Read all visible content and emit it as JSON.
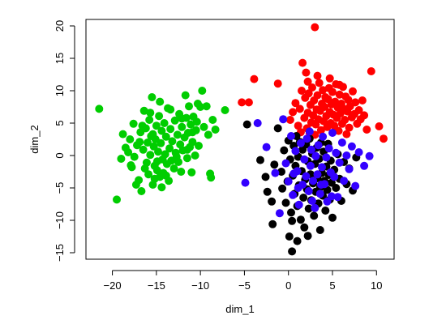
{
  "chart_data": {
    "type": "scatter",
    "title": "",
    "xlabel": "dim_1",
    "ylabel": "dim_2",
    "xlim": [
      -23,
      12
    ],
    "ylim": [
      -16,
      21
    ],
    "xticks": [
      -20,
      -15,
      -10,
      -5,
      0,
      5,
      10
    ],
    "yticks": [
      -15,
      -10,
      -5,
      0,
      5,
      10,
      15,
      20
    ],
    "xtick_labels": [
      "−20",
      "−15",
      "−10",
      "−5",
      "0",
      "5",
      "10"
    ],
    "ytick_labels": [
      "−15",
      "−10",
      "−5",
      "0",
      "5",
      "10",
      "15",
      "20"
    ],
    "grid": false,
    "legend": "none",
    "series": [
      {
        "color": "#00cd00",
        "points": [
          [
            -21.5,
            7.2
          ],
          [
            -19.5,
            -6.8
          ],
          [
            -19,
            -0.5
          ],
          [
            -18.8,
            3.3
          ],
          [
            -18.5,
            1.2
          ],
          [
            -18.2,
            0.5
          ],
          [
            -18,
            2.5
          ],
          [
            -17.8,
            -1.8
          ],
          [
            -17.6,
            4.9
          ],
          [
            -17.5,
            -0.2
          ],
          [
            -17.2,
            1.6
          ],
          [
            -17,
            -3.8
          ],
          [
            -16.8,
            3.6
          ],
          [
            -16.7,
            -5.5
          ],
          [
            -16.5,
            0.9
          ],
          [
            -16.4,
            6.9
          ],
          [
            -16.2,
            4.2
          ],
          [
            -16.1,
            -1.1
          ],
          [
            -16,
            2.0
          ],
          [
            -15.9,
            -2.9
          ],
          [
            -15.8,
            5.5
          ],
          [
            -15.7,
            0.1
          ],
          [
            -15.6,
            3.0
          ],
          [
            -15.5,
            9.0
          ],
          [
            -15.4,
            -4.5
          ],
          [
            -15.3,
            1.4
          ],
          [
            -15.2,
            -1.6
          ],
          [
            -15.1,
            2.5
          ],
          [
            -15,
            4.6
          ],
          [
            -14.9,
            -2.3
          ],
          [
            -14.8,
            0.6
          ],
          [
            -14.7,
            6.1
          ],
          [
            -14.6,
            -3.3
          ],
          [
            -14.5,
            1.9
          ],
          [
            -14.4,
            3.8
          ],
          [
            -14.3,
            -0.6
          ],
          [
            -14.2,
            -2.7
          ],
          [
            -14.1,
            5.0
          ],
          [
            -14,
            0.2
          ],
          [
            -13.9,
            2.9
          ],
          [
            -13.8,
            -1.3
          ],
          [
            -13.7,
            7.3
          ],
          [
            -13.6,
            -3.9
          ],
          [
            -13.5,
            1.1
          ],
          [
            -13.4,
            4.1
          ],
          [
            -13.3,
            -0.8
          ],
          [
            -13.2,
            2.2
          ],
          [
            -13,
            -2.0
          ],
          [
            -12.9,
            5.4
          ],
          [
            -12.8,
            0.4
          ],
          [
            -12.6,
            3.2
          ],
          [
            -12.5,
            -1.0
          ],
          [
            -12.4,
            6.4
          ],
          [
            -12.3,
            1.7
          ],
          [
            -12.2,
            -2.5
          ],
          [
            -12.1,
            4.4
          ],
          [
            -12,
            0.8
          ],
          [
            -11.8,
            2.8
          ],
          [
            -11.7,
            9.3
          ],
          [
            -11.6,
            5.8
          ],
          [
            -11.5,
            -0.4
          ],
          [
            -11.4,
            3.5
          ],
          [
            -11.3,
            7.6
          ],
          [
            -11.2,
            1.3
          ],
          [
            -11.1,
            4.8
          ],
          [
            -11,
            -2.6
          ],
          [
            -10.9,
            2.1
          ],
          [
            -10.8,
            6.0
          ],
          [
            -10.6,
            0.0
          ],
          [
            -10.5,
            3.9
          ],
          [
            -10.4,
            5.2
          ],
          [
            -10.2,
            1.5
          ],
          [
            -10,
            7.5
          ],
          [
            -9.8,
            10.0
          ],
          [
            -9.6,
            4.4
          ],
          [
            -9.3,
            7.6
          ],
          [
            -9.1,
            3.2
          ],
          [
            -8.9,
            -2.8
          ],
          [
            -8.8,
            -3.4
          ],
          [
            -8.6,
            5.5
          ],
          [
            -8.3,
            4.0
          ],
          [
            -7.2,
            7.0
          ],
          [
            -17.3,
            -4.5
          ],
          [
            -16.9,
            2.1
          ],
          [
            -16.3,
            -2.0
          ],
          [
            -15.7,
            6.6
          ],
          [
            -15.4,
            3.3
          ],
          [
            -14.9,
            -0.9
          ],
          [
            -14.4,
            -4.9
          ],
          [
            -13.9,
            -3.1
          ],
          [
            -13.4,
            7.1
          ],
          [
            -12.7,
            -0.2
          ],
          [
            -12.1,
            5.7
          ],
          [
            -11.5,
            0.9
          ],
          [
            -10.9,
            3.6
          ],
          [
            -10.3,
            8.0
          ],
          [
            -17.9,
            -1.5
          ],
          [
            -16.6,
            4.6
          ],
          [
            -15.2,
            -3.6
          ],
          [
            -14.6,
            8.3
          ]
        ]
      },
      {
        "color": "#ff0000",
        "points": [
          [
            -5.3,
            8.2
          ],
          [
            -4.5,
            8.2
          ],
          [
            -3.9,
            11.8
          ],
          [
            -1.2,
            11.1
          ],
          [
            0.2,
            5.5
          ],
          [
            0.5,
            6.7
          ],
          [
            0.8,
            8.1
          ],
          [
            1.1,
            4.6
          ],
          [
            1.3,
            7.2
          ],
          [
            1.5,
            10.0
          ],
          [
            1.6,
            14.3
          ],
          [
            1.8,
            5.8
          ],
          [
            1.9,
            8.9
          ],
          [
            2.0,
            12.8
          ],
          [
            2.1,
            4.2
          ],
          [
            2.2,
            6.6
          ],
          [
            2.3,
            9.6
          ],
          [
            2.4,
            3.5
          ],
          [
            2.5,
            7.8
          ],
          [
            2.6,
            5.1
          ],
          [
            2.7,
            10.5
          ],
          [
            2.8,
            6.2
          ],
          [
            2.9,
            8.5
          ],
          [
            3.0,
            19.8
          ],
          [
            3.1,
            4.8
          ],
          [
            3.2,
            7.1
          ],
          [
            3.3,
            9.3
          ],
          [
            3.4,
            5.6
          ],
          [
            3.5,
            11.2
          ],
          [
            3.6,
            6.9
          ],
          [
            3.7,
            3.9
          ],
          [
            3.8,
            8.0
          ],
          [
            3.9,
            10.1
          ],
          [
            4.0,
            5.3
          ],
          [
            4.1,
            7.5
          ],
          [
            4.2,
            9.0
          ],
          [
            4.3,
            6.1
          ],
          [
            4.4,
            4.4
          ],
          [
            4.5,
            8.7
          ],
          [
            4.6,
            10.4
          ],
          [
            4.7,
            6.7
          ],
          [
            4.8,
            5.0
          ],
          [
            4.9,
            7.9
          ],
          [
            5.0,
            9.8
          ],
          [
            5.1,
            6.3
          ],
          [
            5.2,
            4.6
          ],
          [
            5.3,
            8.3
          ],
          [
            5.4,
            11.0
          ],
          [
            5.5,
            5.8
          ],
          [
            5.6,
            7.4
          ],
          [
            5.7,
            3.8
          ],
          [
            5.8,
            9.4
          ],
          [
            5.9,
            6.5
          ],
          [
            6.0,
            8.0
          ],
          [
            6.1,
            4.9
          ],
          [
            6.2,
            10.6
          ],
          [
            6.3,
            7.2
          ],
          [
            6.4,
            5.5
          ],
          [
            6.5,
            9.1
          ],
          [
            6.6,
            3.3
          ],
          [
            6.7,
            6.8
          ],
          [
            6.8,
            8.6
          ],
          [
            6.9,
            4.3
          ],
          [
            7.0,
            7.6
          ],
          [
            7.2,
            5.9
          ],
          [
            7.3,
            9.9
          ],
          [
            7.5,
            6.4
          ],
          [
            7.6,
            8.2
          ],
          [
            7.8,
            4.9
          ],
          [
            8.0,
            7.0
          ],
          [
            8.2,
            5.6
          ],
          [
            8.4,
            8.5
          ],
          [
            8.6,
            6.2
          ],
          [
            8.9,
            4.0
          ],
          [
            9.4,
            13.0
          ],
          [
            10.3,
            4.5
          ],
          [
            10.8,
            2.6
          ],
          [
            2.2,
            11.4
          ],
          [
            3.3,
            12.3
          ],
          [
            4.7,
            11.9
          ],
          [
            5.8,
            10.9
          ],
          [
            1.4,
            3.6
          ],
          [
            3.0,
            3.2
          ]
        ]
      },
      {
        "color": "#000000",
        "points": [
          [
            -4.7,
            4.8
          ],
          [
            -3.2,
            -0.7
          ],
          [
            -2.6,
            -3.3
          ],
          [
            -2.4,
            -5.6
          ],
          [
            -1.8,
            -10.6
          ],
          [
            -1.6,
            -1.4
          ],
          [
            -1.2,
            4.2
          ],
          [
            -0.8,
            -2.5
          ],
          [
            -0.5,
            0.8
          ],
          [
            -0.3,
            -7.3
          ],
          [
            -0.1,
            -4.0
          ],
          [
            0.0,
            2.3
          ],
          [
            0.1,
            -12.5
          ],
          [
            0.2,
            -0.6
          ],
          [
            0.3,
            -8.8
          ],
          [
            0.4,
            -14.8
          ],
          [
            0.5,
            -3.1
          ],
          [
            0.6,
            1.5
          ],
          [
            0.7,
            -5.9
          ],
          [
            0.8,
            -1.6
          ],
          [
            0.9,
            3.0
          ],
          [
            1.0,
            -7.8
          ],
          [
            1.1,
            -0.2
          ],
          [
            1.2,
            -4.6
          ],
          [
            1.3,
            2.1
          ],
          [
            1.4,
            -9.9
          ],
          [
            1.5,
            -2.4
          ],
          [
            1.6,
            0.9
          ],
          [
            1.7,
            -6.5
          ],
          [
            1.8,
            -11.1
          ],
          [
            1.9,
            -3.7
          ],
          [
            2.0,
            1.7
          ],
          [
            2.1,
            -5.2
          ],
          [
            2.2,
            -0.9
          ],
          [
            2.3,
            -8.2
          ],
          [
            2.4,
            2.6
          ],
          [
            2.5,
            -2.9
          ],
          [
            2.6,
            -6.9
          ],
          [
            2.7,
            0.3
          ],
          [
            2.8,
            -4.3
          ],
          [
            2.9,
            -9.3
          ],
          [
            3.0,
            -1.3
          ],
          [
            3.1,
            -5.6
          ],
          [
            3.2,
            1.2
          ],
          [
            3.3,
            -3.5
          ],
          [
            3.4,
            -7.4
          ],
          [
            3.5,
            -0.5
          ],
          [
            3.6,
            -4.9
          ],
          [
            3.7,
            2.0
          ],
          [
            3.8,
            -2.7
          ],
          [
            3.9,
            -6.2
          ],
          [
            4.0,
            0.6
          ],
          [
            4.1,
            -3.9
          ],
          [
            4.2,
            -8.5
          ],
          [
            4.3,
            -1.7
          ],
          [
            4.4,
            -5.3
          ],
          [
            4.5,
            1.8
          ],
          [
            4.6,
            -3.0
          ],
          [
            4.7,
            -6.8
          ],
          [
            4.8,
            -0.8
          ],
          [
            4.9,
            -4.2
          ],
          [
            5.0,
            -9.6
          ],
          [
            5.2,
            -2.2
          ],
          [
            5.4,
            -5.0
          ],
          [
            5.6,
            0.2
          ],
          [
            5.8,
            -3.6
          ],
          [
            6.0,
            -7.0
          ],
          [
            6.3,
            -1.0
          ],
          [
            6.6,
            -4.4
          ],
          [
            6.9,
            -2.0
          ],
          [
            7.3,
            -5.4
          ],
          [
            7.7,
            -0.3
          ],
          [
            0.4,
            -10.1
          ],
          [
            1.0,
            -13.2
          ],
          [
            2.2,
            -12.4
          ],
          [
            -1.9,
            -7.1
          ],
          [
            -0.7,
            -5.1
          ],
          [
            3.6,
            -11.5
          ]
        ]
      },
      {
        "color": "#3300ff",
        "points": [
          [
            -4.9,
            -4.2
          ],
          [
            -3.5,
            5.0
          ],
          [
            -2.5,
            1.3
          ],
          [
            -1.5,
            -2.7
          ],
          [
            -1.0,
            -8.9
          ],
          [
            -0.6,
            5.6
          ],
          [
            -0.3,
            -1.2
          ],
          [
            0.0,
            -4.0
          ],
          [
            0.3,
            3.0
          ],
          [
            0.5,
            -6.1
          ],
          [
            0.8,
            0.7
          ],
          [
            1.0,
            -2.4
          ],
          [
            1.2,
            -7.6
          ],
          [
            1.4,
            1.9
          ],
          [
            1.6,
            -4.5
          ],
          [
            1.8,
            -0.6
          ],
          [
            2.0,
            -3.2
          ],
          [
            2.1,
            2.6
          ],
          [
            2.3,
            -5.5
          ],
          [
            2.5,
            -1.6
          ],
          [
            2.6,
            0.9
          ],
          [
            2.8,
            -3.9
          ],
          [
            3.0,
            -8.1
          ],
          [
            3.1,
            -0.1
          ],
          [
            3.3,
            -2.9
          ],
          [
            3.4,
            1.6
          ],
          [
            3.6,
            -5.9
          ],
          [
            3.8,
            -1.8
          ],
          [
            3.9,
            2.9
          ],
          [
            4.1,
            -4.4
          ],
          [
            4.3,
            -0.3
          ],
          [
            4.4,
            -7.1
          ],
          [
            4.6,
            1.1
          ],
          [
            4.8,
            -2.6
          ],
          [
            5.0,
            3.5
          ],
          [
            5.2,
            -3.3
          ],
          [
            5.4,
            0.4
          ],
          [
            5.6,
            -6.4
          ],
          [
            5.8,
            -1.1
          ],
          [
            6.1,
            2.0
          ],
          [
            6.3,
            -3.9
          ],
          [
            6.6,
            0.0
          ],
          [
            6.9,
            -2.1
          ],
          [
            7.2,
            1.4
          ],
          [
            7.6,
            -4.7
          ],
          [
            8.0,
            0.5
          ],
          [
            8.6,
            -1.6
          ],
          [
            9.2,
            -0.1
          ],
          [
            2.7,
            -7.0
          ],
          [
            1.1,
            -5.0
          ],
          [
            3.7,
            -4.5
          ],
          [
            4.9,
            -6.3
          ],
          [
            0.6,
            -2.8
          ],
          [
            2.4,
            3.7
          ]
        ]
      }
    ]
  }
}
